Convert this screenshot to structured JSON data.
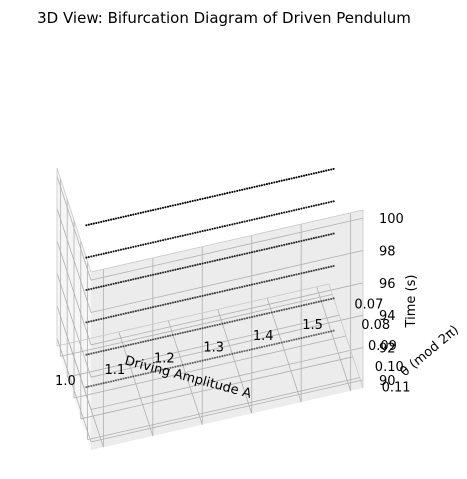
{
  "chart_data": {
    "type": "scatter",
    "projection": "3d",
    "title": "3D View: Bifurcation Diagram of Driven Pendulum",
    "xlabel": "Driving Amplitude A",
    "ylabel": "θ (mod 2π)",
    "zlabel": "Time (s)",
    "xlim": [
      0.975,
      1.525
    ],
    "ylim": [
      0.065,
      0.115
    ],
    "zlim": [
      89.5,
      100.5
    ],
    "xticks": [
      "1.0",
      "1.1",
      "1.2",
      "1.3",
      "1.4",
      "1.5"
    ],
    "yticks": [
      "0.07",
      "0.08",
      "0.09",
      "0.10",
      "0.11"
    ],
    "zticks": [
      "90",
      "92",
      "94",
      "96",
      "98",
      "100"
    ],
    "grid": true,
    "pane_color": "#f2f2f2",
    "marker_color": "#000000",
    "x_range": [
      1.0,
      1.5
    ],
    "points_per_series": 101,
    "series": [
      {
        "y": 0.09,
        "z": 90
      },
      {
        "y": 0.09,
        "z": 92
      },
      {
        "y": 0.09,
        "z": 94
      },
      {
        "y": 0.09,
        "z": 96
      },
      {
        "y": 0.09,
        "z": 98
      },
      {
        "y": 0.09,
        "z": 100
      }
    ]
  }
}
